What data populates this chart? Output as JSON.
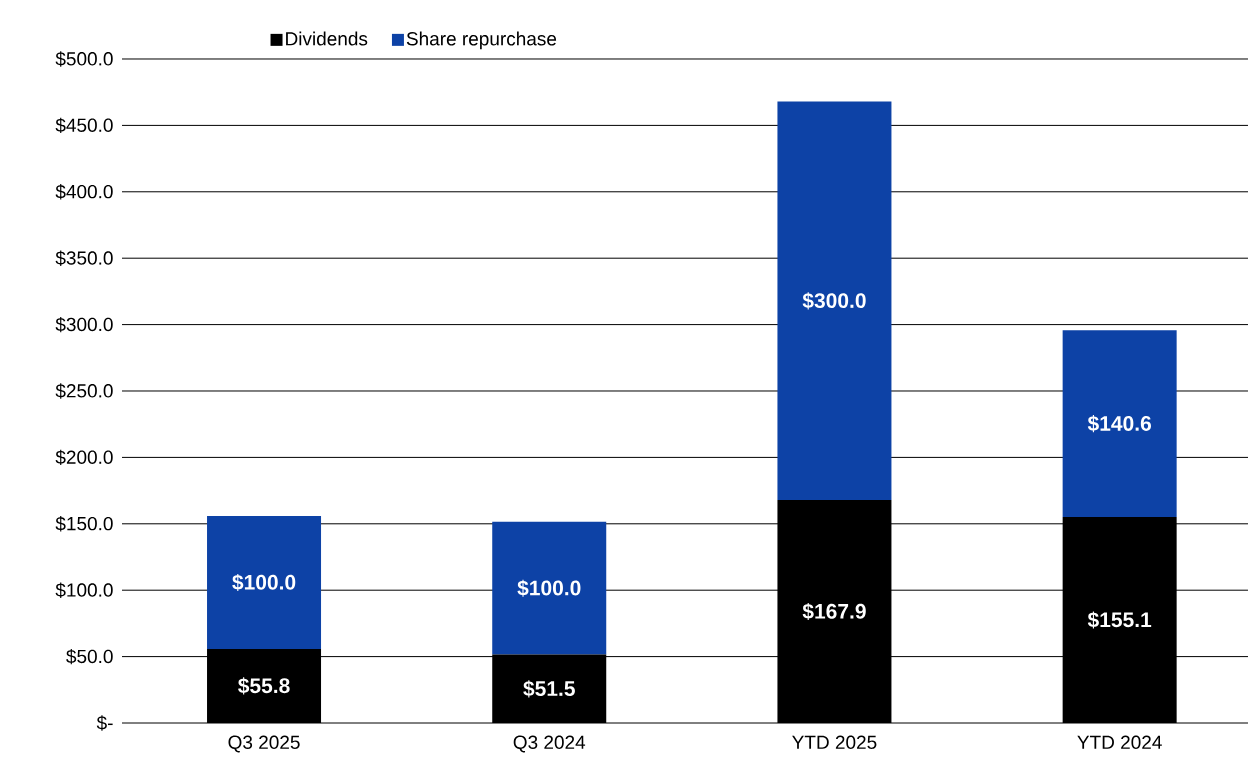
{
  "chart_data": {
    "type": "bar",
    "stacked": true,
    "categories": [
      "Q3 2025",
      "Q3 2024",
      "YTD 2025",
      "YTD 2024"
    ],
    "series": [
      {
        "name": "Dividends",
        "color": "#000000",
        "values": [
          55.8,
          51.5,
          167.9,
          155.1
        ],
        "value_labels": [
          "$55.8",
          "$51.5",
          "$167.9",
          "$155.1"
        ]
      },
      {
        "name": "Share repurchase",
        "color": "#0d42a6",
        "values": [
          100.0,
          100.0,
          300.0,
          140.6
        ],
        "value_labels": [
          "$100.0",
          "$100.0",
          "$300.0",
          "$140.6"
        ]
      }
    ],
    "ylim": [
      0,
      500
    ],
    "yticks": [
      {
        "value": 0,
        "label": "$-"
      },
      {
        "value": 50,
        "label": "$50.0"
      },
      {
        "value": 100,
        "label": "$100.0"
      },
      {
        "value": 150,
        "label": "$150.0"
      },
      {
        "value": 200,
        "label": "$200.0"
      },
      {
        "value": 250,
        "label": "$250.0"
      },
      {
        "value": 300,
        "label": "$300.0"
      },
      {
        "value": 350,
        "label": "$350.0"
      },
      {
        "value": 400,
        "label": "$400.0"
      },
      {
        "value": 450,
        "label": "$450.0"
      },
      {
        "value": 500,
        "label": "$500.0"
      }
    ],
    "grid": "y",
    "legend": "top"
  }
}
